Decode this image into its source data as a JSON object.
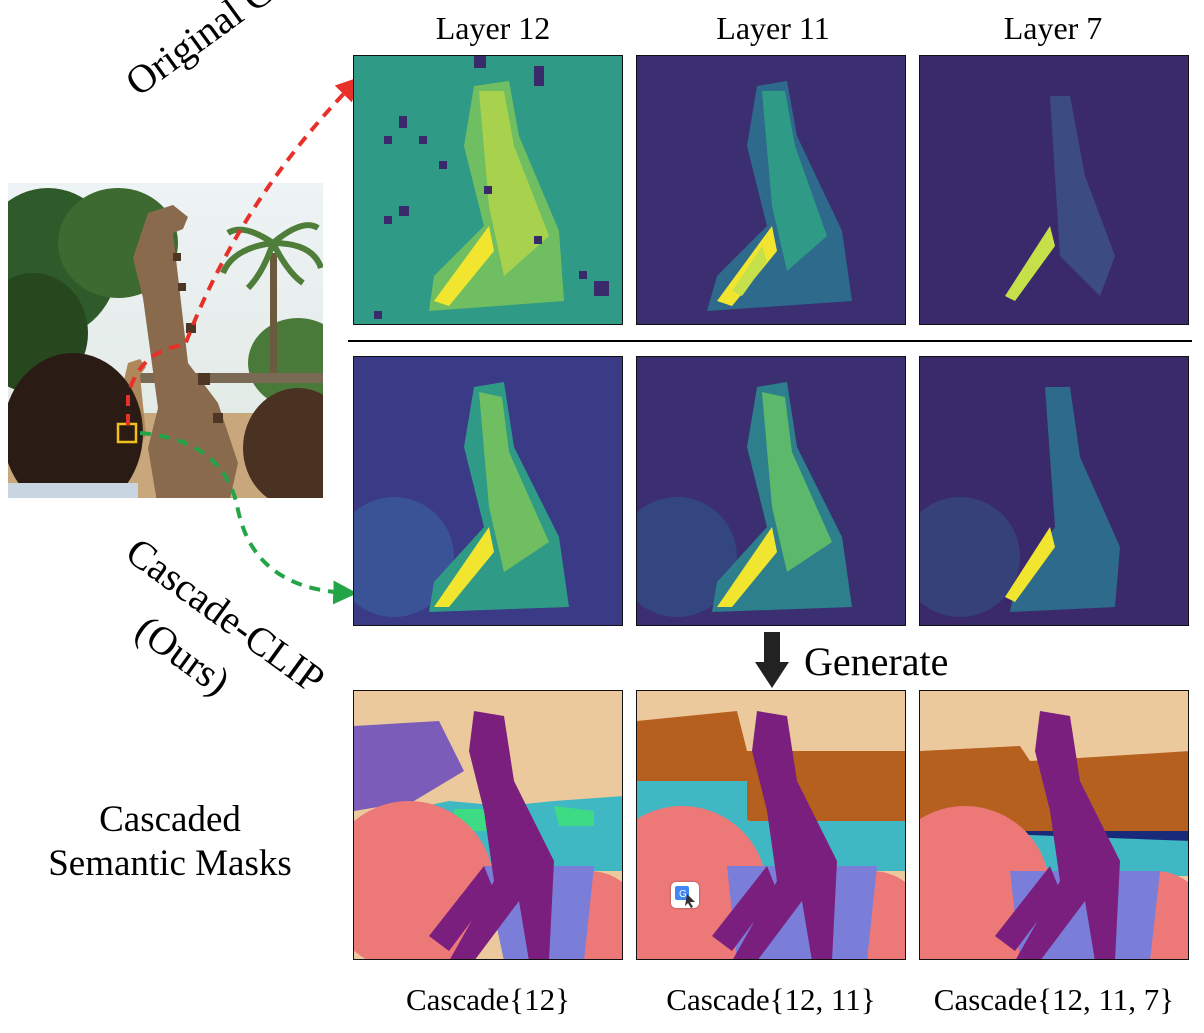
{
  "columns": [
    {
      "label": "Layer 12"
    },
    {
      "label": "Layer 11"
    },
    {
      "label": "Layer 7"
    }
  ],
  "rows": {
    "original": {
      "label": "Original CLIP"
    },
    "cascade": {
      "label_line1": "Cascade-CLIP",
      "label_line2": "(Ours)"
    },
    "masks": {
      "label_line1": "Cascaded",
      "label_line2": "Semantic Masks"
    }
  },
  "generate_label": "Generate",
  "captions": [
    {
      "label": "Cascade{12}"
    },
    {
      "label": "Cascade{12, 11}"
    },
    {
      "label": "Cascade{12, 11, 7}"
    }
  ],
  "colors": {
    "arrow_original": "#e8302a",
    "arrow_cascade": "#22a447",
    "viridis_dark": "#3b2a6b",
    "viridis_mid": "#2f8f8c",
    "viridis_bright": "#f2e530",
    "mask_sky": "#ecc99c",
    "mask_giraffe": "#7b1f7e",
    "mask_person": "#ec7878",
    "mask_tree": "#b5601f",
    "mask_fence": "#3fb8c4",
    "mask_ground": "#7b7ed8"
  },
  "icons": [
    "translate-icon",
    "down-arrow-icon"
  ]
}
